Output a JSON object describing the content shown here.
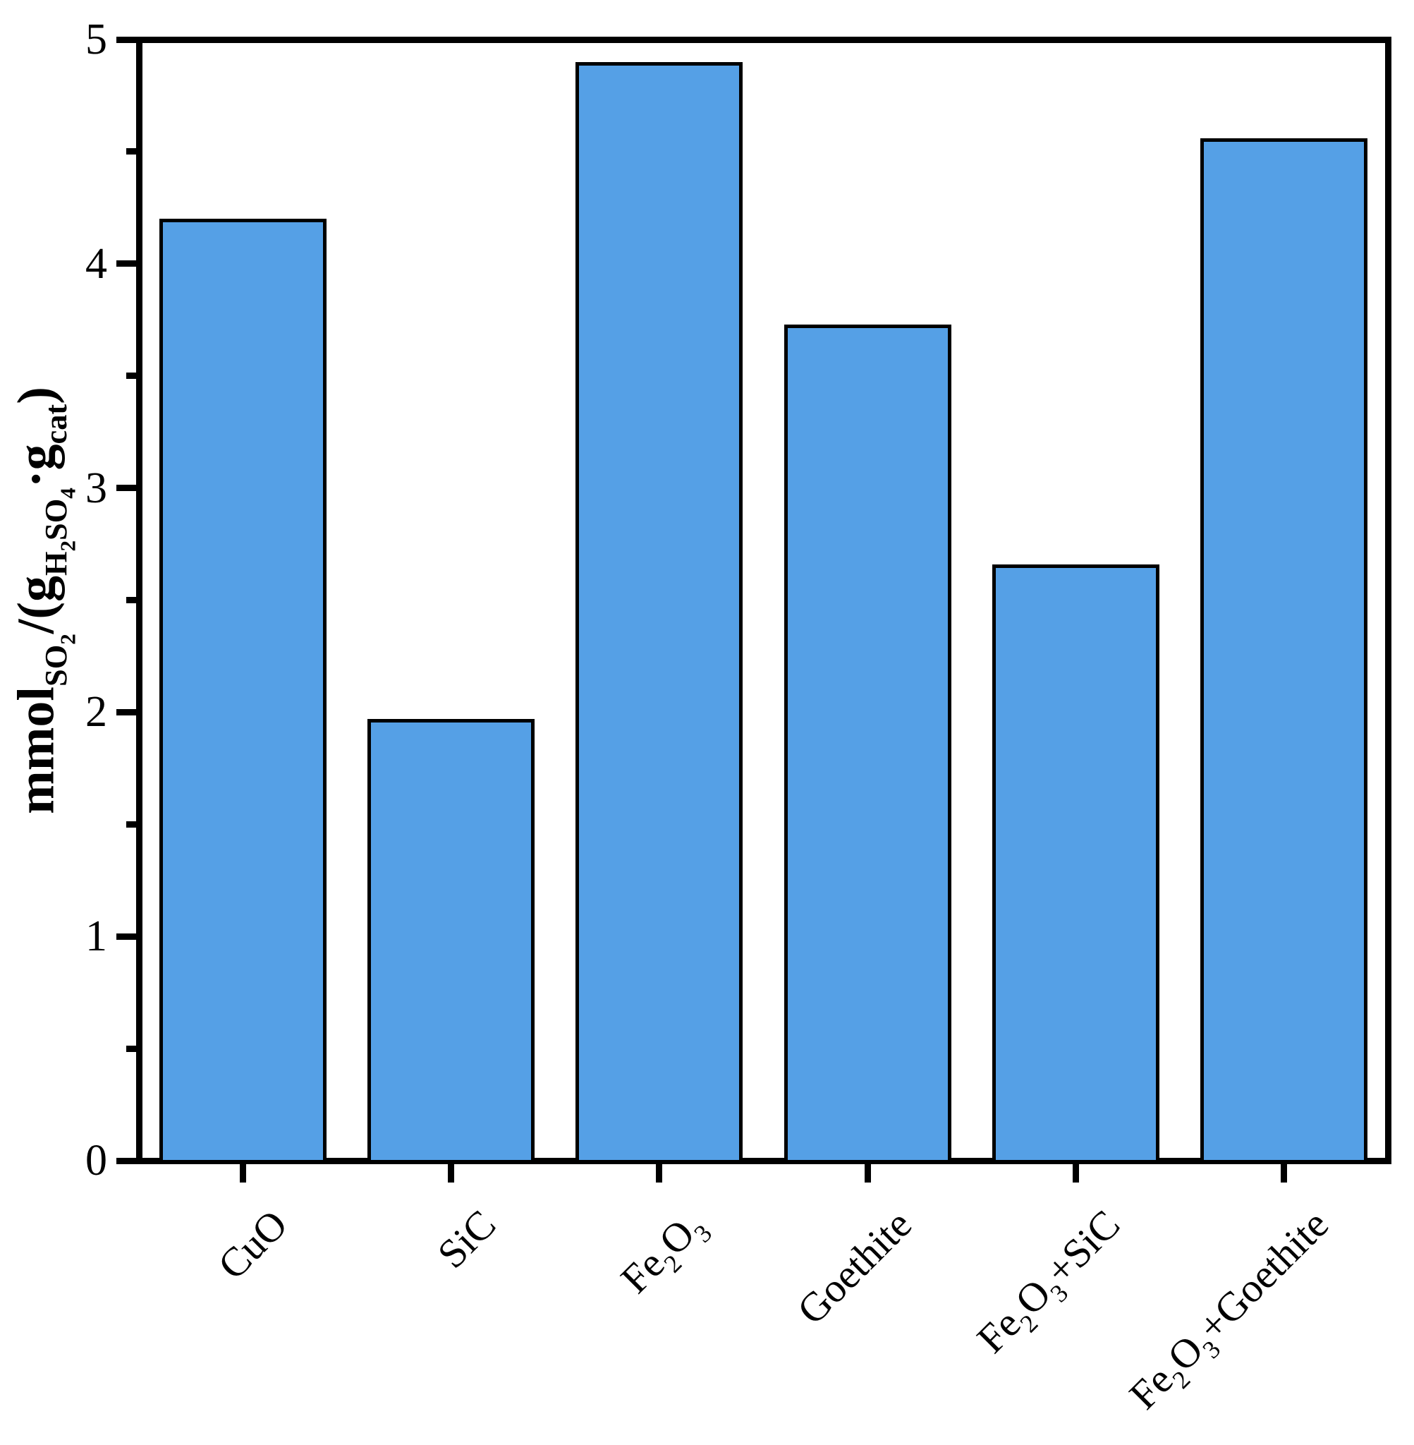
{
  "chart_data": {
    "type": "bar",
    "title": "",
    "xlabel": "",
    "ylabel": "mmol_SO2/(g_H2SO4.g_cat)",
    "ylabel_segments": [
      {
        "t": "mmol",
        "lv": 0
      },
      {
        "t": "SO",
        "lv": 1
      },
      {
        "t": "2",
        "lv": 2
      },
      {
        "t": "/(g",
        "lv": 0
      },
      {
        "t": "H",
        "lv": 1
      },
      {
        "t": "2",
        "lv": 2
      },
      {
        "t": "SO",
        "lv": 1
      },
      {
        "t": "4",
        "lv": 2
      },
      {
        "t": "·g",
        "lv": 0
      },
      {
        "t": "cat",
        "lv": 1
      },
      {
        "t": ")",
        "lv": 0
      }
    ],
    "categories": [
      "CuO",
      "SiC",
      "Fe2O3",
      "Goethite",
      "Fe2O3+SiC",
      "Fe2O3+Goethite"
    ],
    "category_segments": [
      [
        {
          "t": "CuO",
          "lv": 0
        }
      ],
      [
        {
          "t": "SiC",
          "lv": 0
        }
      ],
      [
        {
          "t": "Fe",
          "lv": 0
        },
        {
          "t": "2",
          "lv": 1
        },
        {
          "t": "O",
          "lv": 0
        },
        {
          "t": "3",
          "lv": 1
        }
      ],
      [
        {
          "t": "Goethite",
          "lv": 0
        }
      ],
      [
        {
          "t": "Fe",
          "lv": 0
        },
        {
          "t": "2",
          "lv": 1
        },
        {
          "t": "O",
          "lv": 0
        },
        {
          "t": "3",
          "lv": 1
        },
        {
          "t": "+SiC",
          "lv": 0
        }
      ],
      [
        {
          "t": "Fe",
          "lv": 0
        },
        {
          "t": "2",
          "lv": 1
        },
        {
          "t": "O",
          "lv": 0
        },
        {
          "t": "3",
          "lv": 1
        },
        {
          "t": "+Goethite",
          "lv": 0
        }
      ]
    ],
    "values": [
      4.2,
      1.97,
      4.9,
      3.73,
      2.66,
      4.56
    ],
    "ylim": [
      0,
      5
    ],
    "y_major_ticks": [
      0,
      1,
      2,
      3,
      4,
      5
    ],
    "y_minor_tick_step": 0.5,
    "x_tick_label_rotation_deg": 45,
    "grid": false,
    "legend": "none",
    "colors": {
      "bar_fill": "#55A0E6",
      "bar_edge": "#000000",
      "axis": "#000000",
      "text": "#000000",
      "background": "#FFFFFF"
    }
  }
}
